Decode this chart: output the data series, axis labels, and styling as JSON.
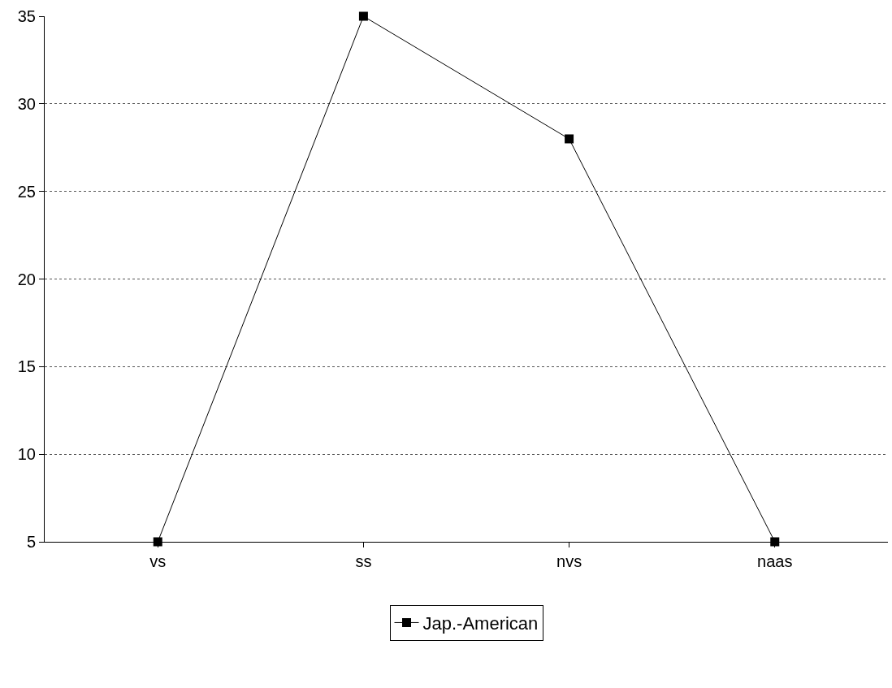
{
  "chart_data": {
    "type": "line",
    "categories": [
      "vs",
      "ss",
      "nvs",
      "naas"
    ],
    "series": [
      {
        "name": "Jap.-American",
        "color": "#000000",
        "values": [
          5,
          35,
          28,
          5
        ]
      }
    ],
    "ylim": [
      5,
      35
    ],
    "yticks": [
      5,
      10,
      15,
      20,
      25,
      30,
      35
    ],
    "grid": "y",
    "legend": "bottom",
    "marker": "square",
    "line_style": "solid"
  }
}
